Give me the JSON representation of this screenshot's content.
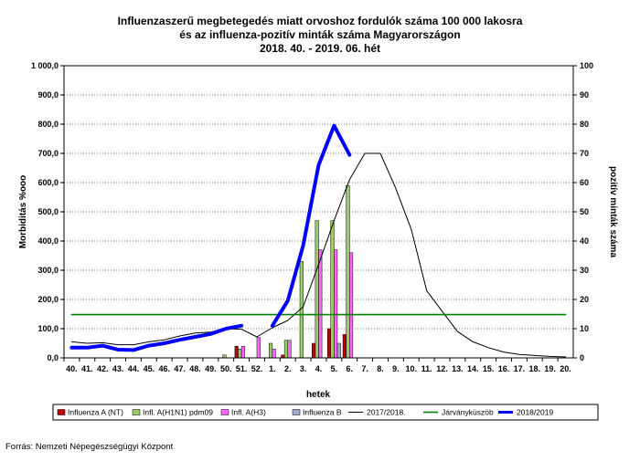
{
  "chart_data": {
    "type": "bar+line",
    "title_lines": [
      "Influenzaszerű megbetegedés miatt orvoshoz fordulók száma 100 000 lakosra",
      "és az influenza-pozitív minták száma Magyarországon",
      "2018. 40. - 2019. 06. hét"
    ],
    "xlabel": "hetek",
    "ylabel_left": "Morbiditás %ooo",
    "ylabel_right": "pozitív minták száma",
    "ylim_left": [
      0,
      1000
    ],
    "ylim_right": [
      0,
      100
    ],
    "yticks_left": [
      "0,0",
      "100,0",
      "200,0",
      "300,0",
      "400,0",
      "500,0",
      "600,0",
      "700,0",
      "800,0",
      "900,0",
      "1 000,0"
    ],
    "yticks_right": [
      "0",
      "10",
      "20",
      "30",
      "40",
      "50",
      "60",
      "70",
      "80",
      "90",
      "100"
    ],
    "categories": [
      "40.",
      "41.",
      "42.",
      "43.",
      "44.",
      "45.",
      "46.",
      "47.",
      "48.",
      "49.",
      "50.",
      "51.",
      "52.",
      "1.",
      "2.",
      "3.",
      "4.",
      "5.",
      "6.",
      "7.",
      "8.",
      "9.",
      "10.",
      "11.",
      "12.",
      "13.",
      "14.",
      "15.",
      "16.",
      "17.",
      "18.",
      "19.",
      "20."
    ],
    "bar_series": [
      {
        "name": "Influenza A (NT)",
        "color": "#c00000",
        "values": [
          0,
          0,
          0,
          0,
          0,
          0,
          0,
          0,
          0,
          0,
          0,
          4,
          0,
          0,
          1,
          0,
          5,
          10,
          8,
          0,
          0,
          0,
          0,
          0,
          0,
          0,
          0,
          0,
          0,
          0,
          0,
          0,
          0
        ]
      },
      {
        "name": "Infl. A(H1N1) pdm09",
        "color": "#99cc66",
        "values": [
          0,
          0,
          0,
          0,
          0,
          0,
          0,
          0,
          0,
          0,
          1,
          3,
          0,
          5,
          6,
          33,
          47,
          47,
          59,
          0,
          0,
          0,
          0,
          0,
          0,
          0,
          0,
          0,
          0,
          0,
          0,
          0,
          0
        ]
      },
      {
        "name": "Infl. A(H3)",
        "color": "#ff66ff",
        "values": [
          0,
          0,
          0,
          0,
          0,
          0,
          0,
          0,
          0,
          0,
          0,
          4,
          7,
          3,
          6,
          0,
          37,
          37,
          36,
          0,
          0,
          0,
          0,
          0,
          0,
          0,
          0,
          0,
          0,
          0,
          0,
          0,
          0
        ]
      },
      {
        "name": "Influenza B",
        "color": "#99aacc",
        "values": [
          0,
          0,
          0,
          0,
          0,
          0,
          0,
          0,
          0,
          0,
          0,
          0,
          0,
          0,
          0,
          0,
          0,
          5,
          0,
          0,
          0,
          0,
          0,
          0,
          0,
          0,
          0,
          0,
          0,
          0,
          0,
          0,
          0
        ]
      }
    ],
    "line_series": [
      {
        "name": "2017/2018.",
        "color": "#000000",
        "width": 1,
        "values": [
          55,
          50,
          52,
          45,
          45,
          55,
          62,
          75,
          85,
          88,
          100,
          98,
          72,
          103,
          128,
          175,
          320,
          470,
          610,
          700,
          700,
          580,
          440,
          230,
          160,
          90,
          55,
          35,
          20,
          12,
          8,
          5,
          3
        ]
      },
      {
        "name": "Járványküszöb",
        "color": "#008000",
        "width": 1.6,
        "values": [
          148,
          148,
          148,
          148,
          148,
          148,
          148,
          148,
          148,
          148,
          148,
          148,
          148,
          148,
          148,
          148,
          148,
          148,
          148,
          148,
          148,
          148,
          148,
          148,
          148,
          148,
          148,
          148,
          148,
          148,
          148,
          148,
          148
        ]
      },
      {
        "name": "2018/2019",
        "color": "#0000ff",
        "width": 4,
        "values": [
          35,
          35,
          42,
          28,
          27,
          42,
          50,
          62,
          72,
          82,
          100,
          110,
          null,
          110,
          195,
          385,
          660,
          795,
          695,
          null,
          null,
          null,
          null,
          null,
          null,
          null,
          null,
          null,
          null,
          null,
          null,
          null,
          null
        ]
      }
    ]
  },
  "source": "Forrás: Nemzeti Népegészségügyi Központ"
}
